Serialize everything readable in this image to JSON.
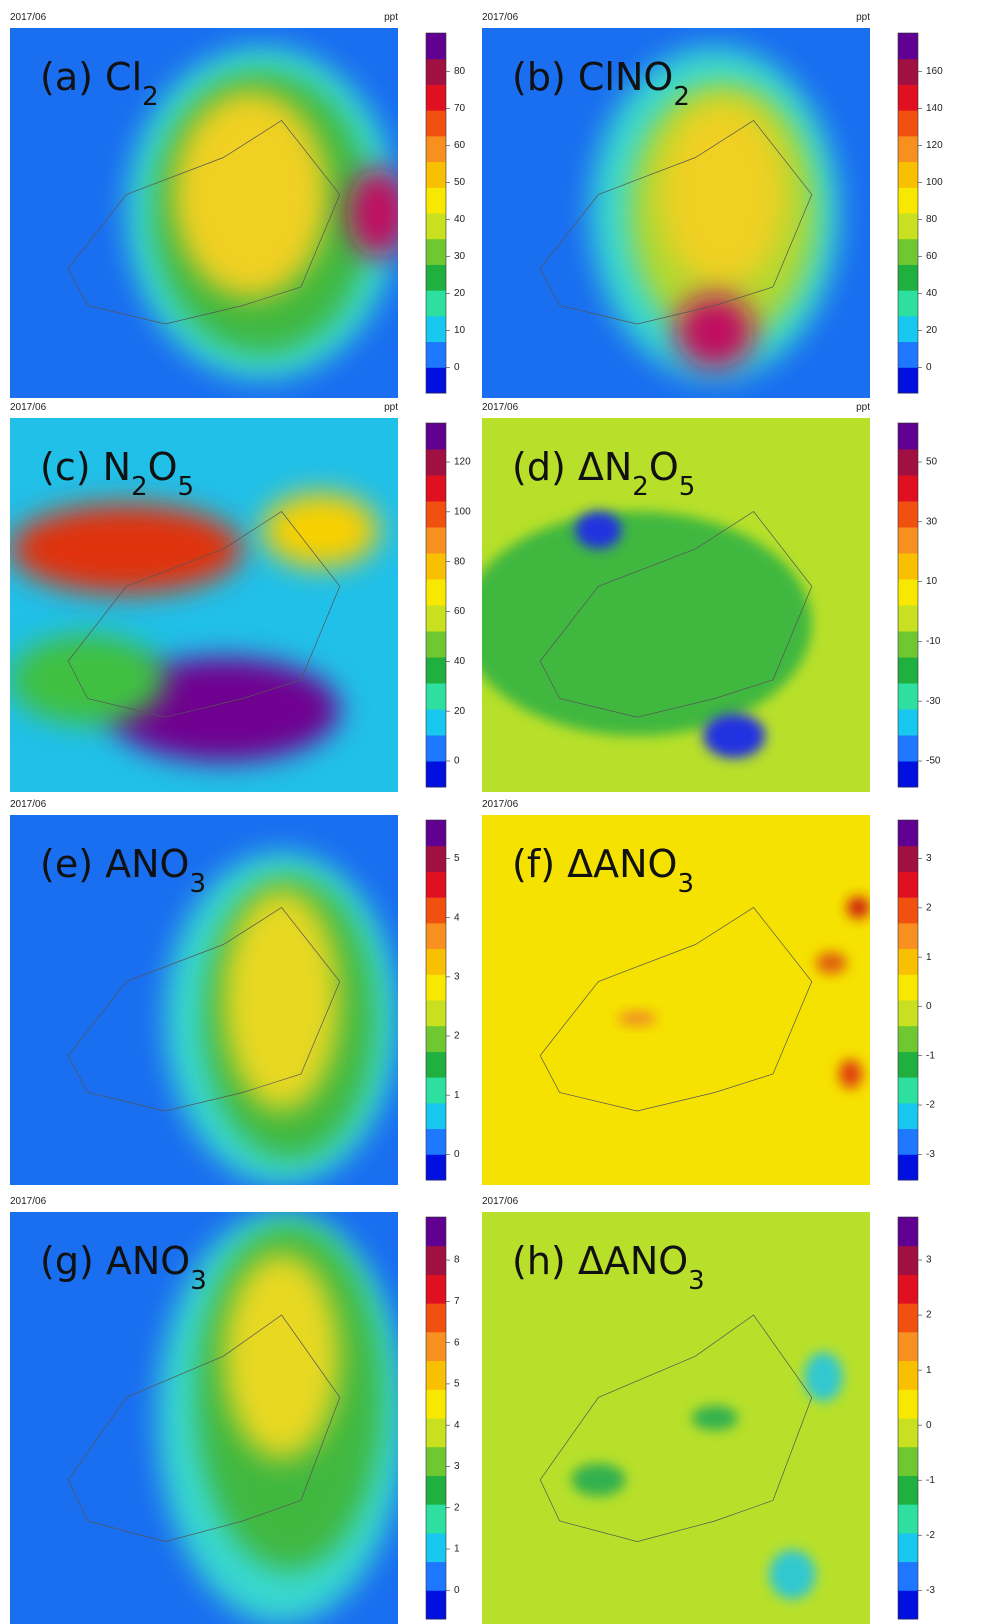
{
  "panels": [
    {
      "date": "2017/06",
      "unit": "ppt",
      "tag": "(a)",
      "formula": [
        {
          "text": "Cl"
        },
        {
          "text": "2",
          "sub": true
        }
      ],
      "colorbar_ticks": [
        0,
        10,
        20,
        30,
        40,
        50,
        60,
        70,
        80
      ]
    },
    {
      "date": "2017/06",
      "unit": "ppt",
      "tag": "(b)",
      "formula": [
        {
          "text": "ClNO"
        },
        {
          "text": "2",
          "sub": true
        }
      ],
      "colorbar_ticks": [
        0,
        20,
        40,
        60,
        80,
        100,
        120,
        140,
        160
      ]
    },
    {
      "date": "2017/06",
      "unit": "ppt",
      "tag": "(c)",
      "formula": [
        {
          "text": "N"
        },
        {
          "text": "2",
          "sub": true
        },
        {
          "text": "O"
        },
        {
          "text": "5",
          "sub": true
        }
      ],
      "colorbar_ticks": [
        0,
        20,
        40,
        60,
        80,
        100,
        120
      ]
    },
    {
      "date": "2017/06",
      "unit": "ppt",
      "tag": "(d)",
      "formula": [
        {
          "text": "ΔN"
        },
        {
          "text": "2",
          "sub": true
        },
        {
          "text": "O"
        },
        {
          "text": "5",
          "sub": true
        }
      ],
      "colorbar_ticks": [
        -50,
        -30,
        -10,
        10,
        30,
        50
      ]
    },
    {
      "date": "2017/06",
      "tag": "(e)",
      "formula": [
        {
          "text": "ANO"
        },
        {
          "text": "3",
          "sub": true
        }
      ],
      "colorbar_ticks": [
        0,
        1,
        2,
        3,
        4,
        5
      ]
    },
    {
      "date": "2017/06",
      "tag": "(f)",
      "formula": [
        {
          "text": "ΔANO"
        },
        {
          "text": "3",
          "sub": true
        }
      ],
      "colorbar_ticks": [
        -3,
        -2,
        -1,
        0,
        1,
        2,
        3
      ]
    },
    {
      "date": "2017/06",
      "tag": "(g)",
      "formula": [
        {
          "text": "ANO"
        },
        {
          "text": "3",
          "sub": true
        }
      ],
      "colorbar_ticks": [
        0,
        1,
        2,
        3,
        4,
        5,
        6,
        7,
        8
      ]
    },
    {
      "date": "2017/06",
      "tag": "(h)",
      "formula": [
        {
          "text": "ΔANO"
        },
        {
          "text": "3",
          "sub": true
        }
      ],
      "colorbar_ticks": [
        -3,
        -2,
        -1,
        0,
        1,
        2,
        3
      ]
    }
  ]
}
